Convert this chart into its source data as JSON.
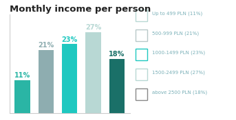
{
  "title": "Monthly income per person",
  "categories": [
    "Up to 499",
    "500-999",
    "1000-1499",
    "1500-2499",
    "above 2500"
  ],
  "values": [
    11,
    21,
    23,
    27,
    18
  ],
  "bar_colors": [
    "#2ab5a5",
    "#8eadb0",
    "#1ec8c0",
    "#b8d8d4",
    "#1a7068"
  ],
  "label_colors": [
    "#2ab5a5",
    "#8eadb0",
    "#1ec8c0",
    "#b8d8d4",
    "#1a7068"
  ],
  "legend_labels": [
    "Up to 499 PLN (11%)",
    "500-999 PLN (21%)",
    "1000-1499 PLN (23%)",
    "1500-2499 PLN (27%)",
    "above 2500 PLN (18%)"
  ],
  "legend_edge_colors": [
    "#b8d8d4",
    "#b8c8c8",
    "#1ec8c0",
    "#b8d8d4",
    "#888888"
  ],
  "background_color": "#ffffff",
  "title_fontsize": 9.5,
  "bar_label_fontsize": 7,
  "ylim": [
    0,
    33
  ],
  "legend_text_color": "#7ab0b8"
}
